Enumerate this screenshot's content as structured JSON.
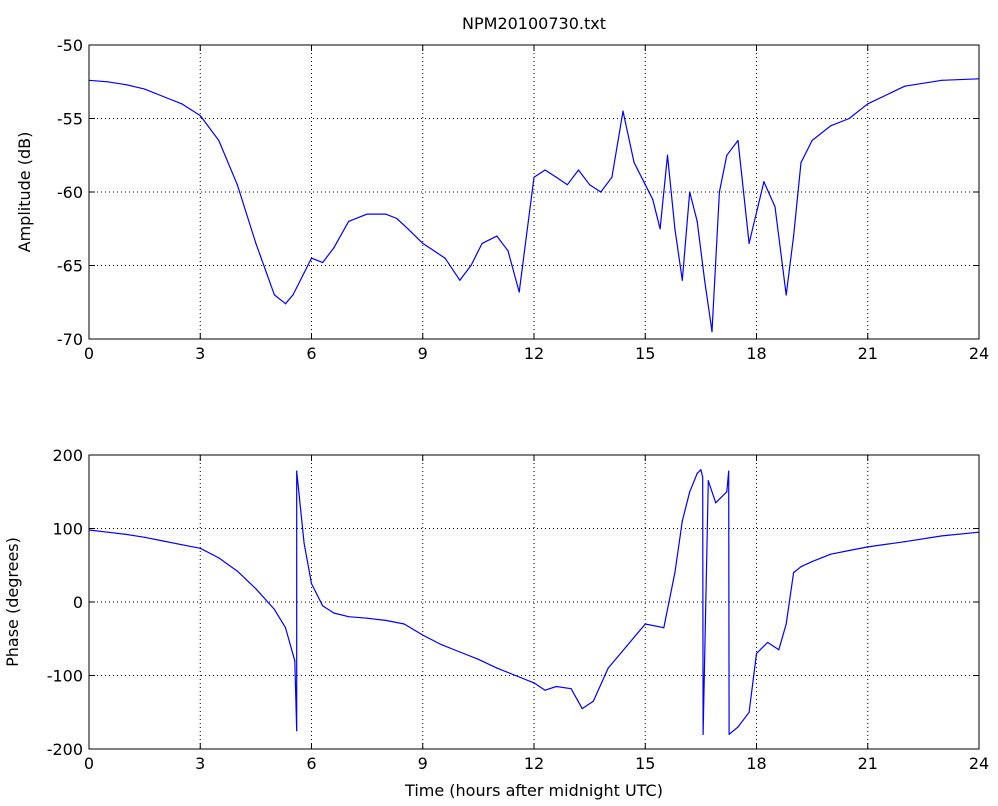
{
  "chart_data": [
    {
      "type": "line",
      "title": "NPM20100730.txt",
      "xlabel": "",
      "ylabel": "Amplitude (dB)",
      "xlim": [
        0,
        24
      ],
      "ylim": [
        -70,
        -50
      ],
      "xticks": [
        0,
        3,
        6,
        9,
        12,
        15,
        18,
        21,
        24
      ],
      "yticks": [
        -70,
        -65,
        -60,
        -55,
        -50
      ],
      "grid": true,
      "series": [
        {
          "color": "#0000ff",
          "x": [
            0,
            0.5,
            1,
            1.5,
            2,
            2.5,
            3,
            3.5,
            4,
            4.5,
            5,
            5.3,
            5.5,
            5.8,
            6,
            6.3,
            6.6,
            7,
            7.5,
            8,
            8.3,
            8.6,
            9,
            9.3,
            9.6,
            10,
            10.3,
            10.6,
            11,
            11.3,
            11.6,
            12,
            12.3,
            12.6,
            12.9,
            13.2,
            13.5,
            13.8,
            14.1,
            14.4,
            14.7,
            15,
            15.2,
            15.4,
            15.6,
            15.8,
            16,
            16.2,
            16.4,
            16.6,
            16.8,
            17,
            17.2,
            17.5,
            17.8,
            18.2,
            18.5,
            18.8,
            19,
            19.2,
            19.5,
            20,
            20.5,
            21,
            22,
            23,
            24
          ],
          "values": [
            -52.4,
            -52.5,
            -52.7,
            -53,
            -53.5,
            -54,
            -54.8,
            -56.5,
            -59.5,
            -63.5,
            -67,
            -67.6,
            -67,
            -65.5,
            -64.5,
            -64.8,
            -63.8,
            -62,
            -61.5,
            -61.5,
            -61.8,
            -62.5,
            -63.5,
            -64,
            -64.5,
            -66,
            -65,
            -63.5,
            -63,
            -64,
            -66.8,
            -59,
            -58.5,
            -59,
            -59.5,
            -58.5,
            -59.5,
            -60,
            -59,
            -54.5,
            -58,
            -59.5,
            -60.5,
            -62.5,
            -57.5,
            -62.5,
            -66,
            -60,
            -62,
            -66,
            -69.5,
            -60,
            -57.5,
            -56.5,
            -63.5,
            -59.3,
            -61,
            -67,
            -63,
            -58,
            -56.5,
            -55.5,
            -55,
            -54,
            -52.8,
            -52.4,
            -52.3
          ]
        }
      ]
    },
    {
      "type": "line",
      "title": "",
      "xlabel": "Time (hours after midnight UTC)",
      "ylabel": "Phase (degrees)",
      "xlim": [
        0,
        24
      ],
      "ylim": [
        -200,
        200
      ],
      "xticks": [
        0,
        3,
        6,
        9,
        12,
        15,
        18,
        21,
        24
      ],
      "yticks": [
        -200,
        -100,
        0,
        100,
        200
      ],
      "grid": true,
      "series": [
        {
          "color": "#0000ff",
          "x": [
            0,
            0.5,
            1,
            1.5,
            2,
            2.5,
            3,
            3.5,
            4,
            4.5,
            5,
            5.3,
            5.55,
            5.6,
            5.6,
            5.8,
            6,
            6.3,
            6.6,
            7,
            7.5,
            8,
            8.5,
            9,
            9.5,
            10,
            10.5,
            11,
            11.5,
            12,
            12.3,
            12.6,
            13,
            13.3,
            13.6,
            14,
            14.5,
            15,
            15.5,
            15.8,
            16,
            16.2,
            16.4,
            16.5,
            16.55,
            16.56,
            16.7,
            16.9,
            17.2,
            17.25,
            17.26,
            17.5,
            17.8,
            18,
            18.3,
            18.6,
            18.8,
            19,
            19.2,
            19.5,
            20,
            20.5,
            21,
            22,
            23,
            24
          ],
          "values": [
            98,
            95,
            92,
            88,
            83,
            78,
            73,
            60,
            42,
            18,
            -10,
            -35,
            -80,
            -175,
            178,
            80,
            25,
            -5,
            -15,
            -20,
            -22,
            -25,
            -30,
            -45,
            -58,
            -68,
            -78,
            -90,
            -100,
            -110,
            -120,
            -115,
            -118,
            -145,
            -135,
            -90,
            -60,
            -30,
            -35,
            40,
            110,
            150,
            175,
            180,
            170,
            -180,
            165,
            135,
            150,
            178,
            -180,
            -170,
            -150,
            -70,
            -55,
            -65,
            -30,
            40,
            48,
            55,
            65,
            70,
            75,
            82,
            90,
            95
          ]
        }
      ]
    }
  ]
}
